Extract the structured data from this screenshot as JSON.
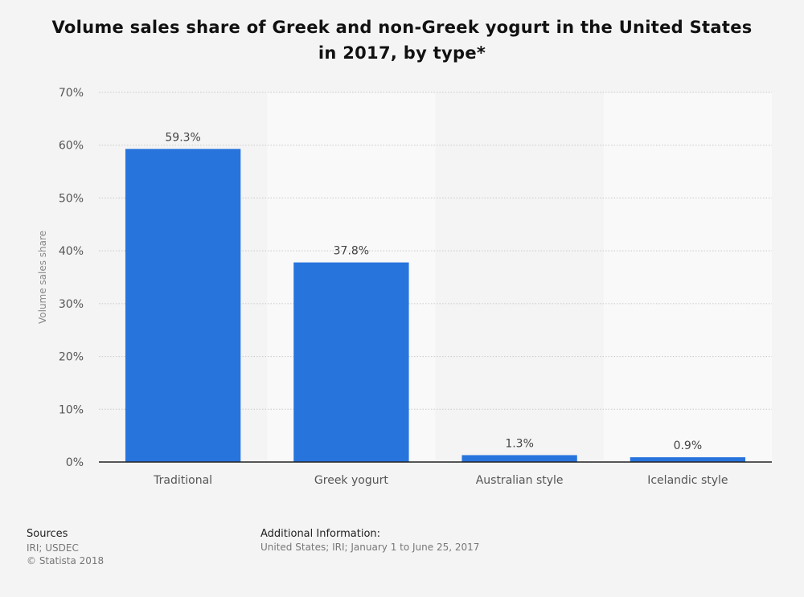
{
  "title": "Volume sales share of Greek and non-Greek yogurt in the United States in 2017, by type*",
  "colors": {
    "bar": "#2874dd",
    "background": "#f4f4f4",
    "band": "#f9f9f9"
  },
  "chart_data": {
    "type": "bar",
    "title": "Volume sales share of Greek and non-Greek yogurt in the United States in 2017, by type*",
    "xlabel": "",
    "ylabel": "Volume sales share",
    "categories": [
      "Traditional",
      "Greek yogurt",
      "Australian style",
      "Icelandic style"
    ],
    "values": [
      59.3,
      37.8,
      1.3,
      0.9
    ],
    "value_labels": [
      "59.3%",
      "37.8%",
      "1.3%",
      "0.9%"
    ],
    "ylim": [
      0,
      70
    ],
    "yticks": [
      0,
      10,
      20,
      30,
      40,
      50,
      60,
      70
    ],
    "ytick_labels": [
      "0%",
      "10%",
      "20%",
      "30%",
      "40%",
      "50%",
      "60%",
      "70%"
    ],
    "grid": true
  },
  "footer": {
    "sources_heading": "Sources",
    "sources_line1": "IRI; USDEC",
    "sources_line2": "© Statista 2018",
    "info_heading": "Additional Information:",
    "info_text": "United States; IRI; January 1 to June 25, 2017"
  }
}
